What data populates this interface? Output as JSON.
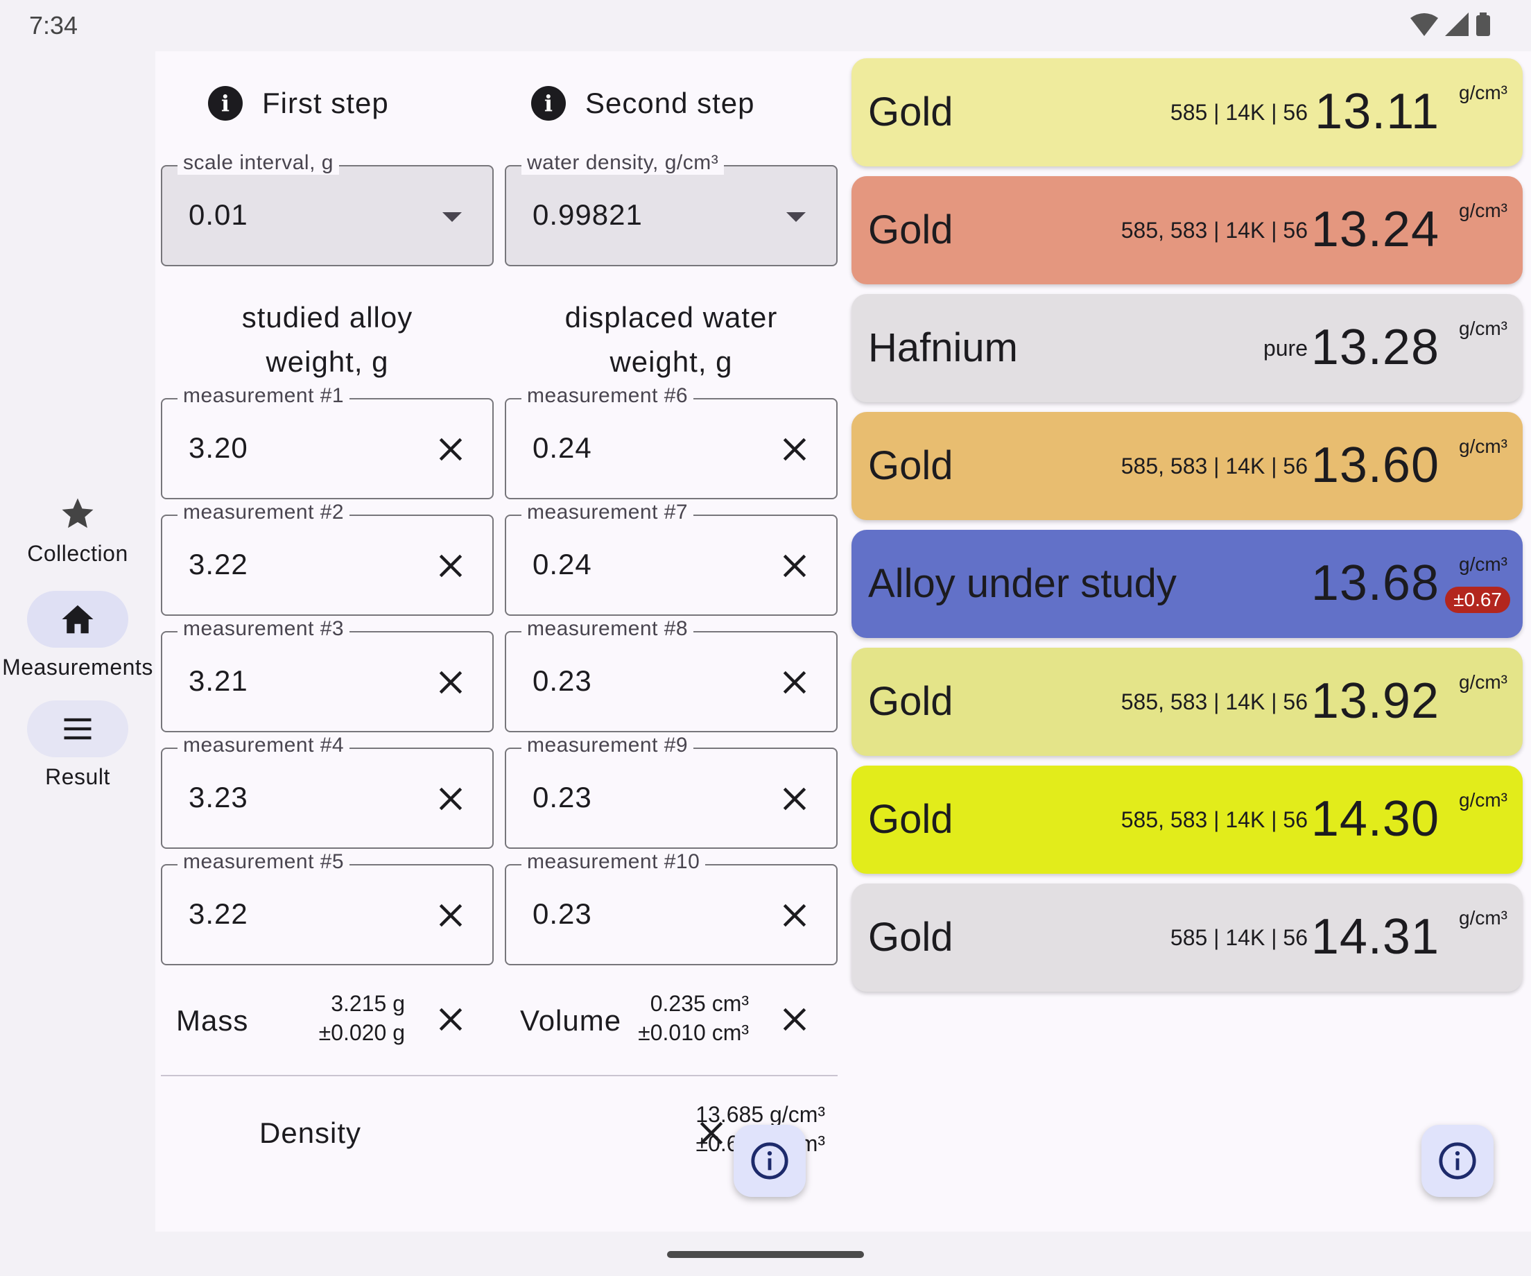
{
  "status": {
    "time": "7:34"
  },
  "nav": [
    {
      "label": "Collection",
      "icon": "star-icon",
      "active": false
    },
    {
      "label": "Measurements",
      "icon": "home-icon",
      "active": true
    },
    {
      "label": "Result",
      "icon": "menu-icon",
      "active": false
    }
  ],
  "steps": {
    "first": {
      "label": "First step"
    },
    "second": {
      "label": "Second step"
    }
  },
  "dropdowns": {
    "scale": {
      "legend": "scale interval, g",
      "value": "0.01"
    },
    "water": {
      "legend": "water density, g/cm³",
      "value": "0.99821"
    }
  },
  "columns": {
    "alloy": {
      "title_line1": "studied alloy",
      "title_line2": "weight, g"
    },
    "water": {
      "title_line1": "displaced water",
      "title_line2": "weight, g"
    }
  },
  "measurements": {
    "alloy": [
      {
        "legend": "measurement #1",
        "value": "3.20"
      },
      {
        "legend": "measurement #2",
        "value": "3.22"
      },
      {
        "legend": "measurement #3",
        "value": "3.21"
      },
      {
        "legend": "measurement #4",
        "value": "3.23"
      },
      {
        "legend": "measurement #5",
        "value": "3.22"
      }
    ],
    "water": [
      {
        "legend": "measurement #6",
        "value": "0.24"
      },
      {
        "legend": "measurement #7",
        "value": "0.24"
      },
      {
        "legend": "measurement #8",
        "value": "0.23"
      },
      {
        "legend": "measurement #9",
        "value": "0.23"
      },
      {
        "legend": "measurement #10",
        "value": "0.23"
      }
    ]
  },
  "summary": {
    "mass": {
      "label": "Mass",
      "value": "3.215 g",
      "error": "±0.020 g"
    },
    "volume": {
      "label": "Volume",
      "value": "0.235 cm³",
      "error": "±0.010 cm³"
    },
    "density": {
      "label": "Density",
      "value": "13.685 g/cm³",
      "error": "±0.667 g/cm³"
    }
  },
  "results": [
    {
      "name": "Gold",
      "meta": "585 | 14K | 56",
      "density": "13.11",
      "unit": "g/cm³",
      "color": "#efeb9d"
    },
    {
      "name": "Gold",
      "meta": "585, 583 | 14K | 56",
      "density": "13.24",
      "unit": "g/cm³",
      "color": "#e4977f"
    },
    {
      "name": "Hafnium",
      "meta": "pure",
      "density": "13.28",
      "unit": "g/cm³",
      "color": "#e2dfe2"
    },
    {
      "name": "Gold",
      "meta": "585, 583 | 14K | 56",
      "density": "13.60",
      "unit": "g/cm³",
      "color": "#e8bd70"
    },
    {
      "name": "Alloy under study",
      "meta": "",
      "density": "13.68",
      "unit": "g/cm³",
      "error": "±0.67",
      "color": "#6271c8"
    },
    {
      "name": "Gold",
      "meta": "585, 583 | 14K | 56",
      "density": "13.92",
      "unit": "g/cm³",
      "color": "#e4e489"
    },
    {
      "name": "Gold",
      "meta": "585, 583 | 14K | 56",
      "density": "14.30",
      "unit": "g/cm³",
      "color": "#e2ec1b"
    },
    {
      "name": "Gold",
      "meta": "585 | 14K | 56",
      "density": "14.31",
      "unit": "g/cm³",
      "color": "#e2dfe2"
    }
  ]
}
